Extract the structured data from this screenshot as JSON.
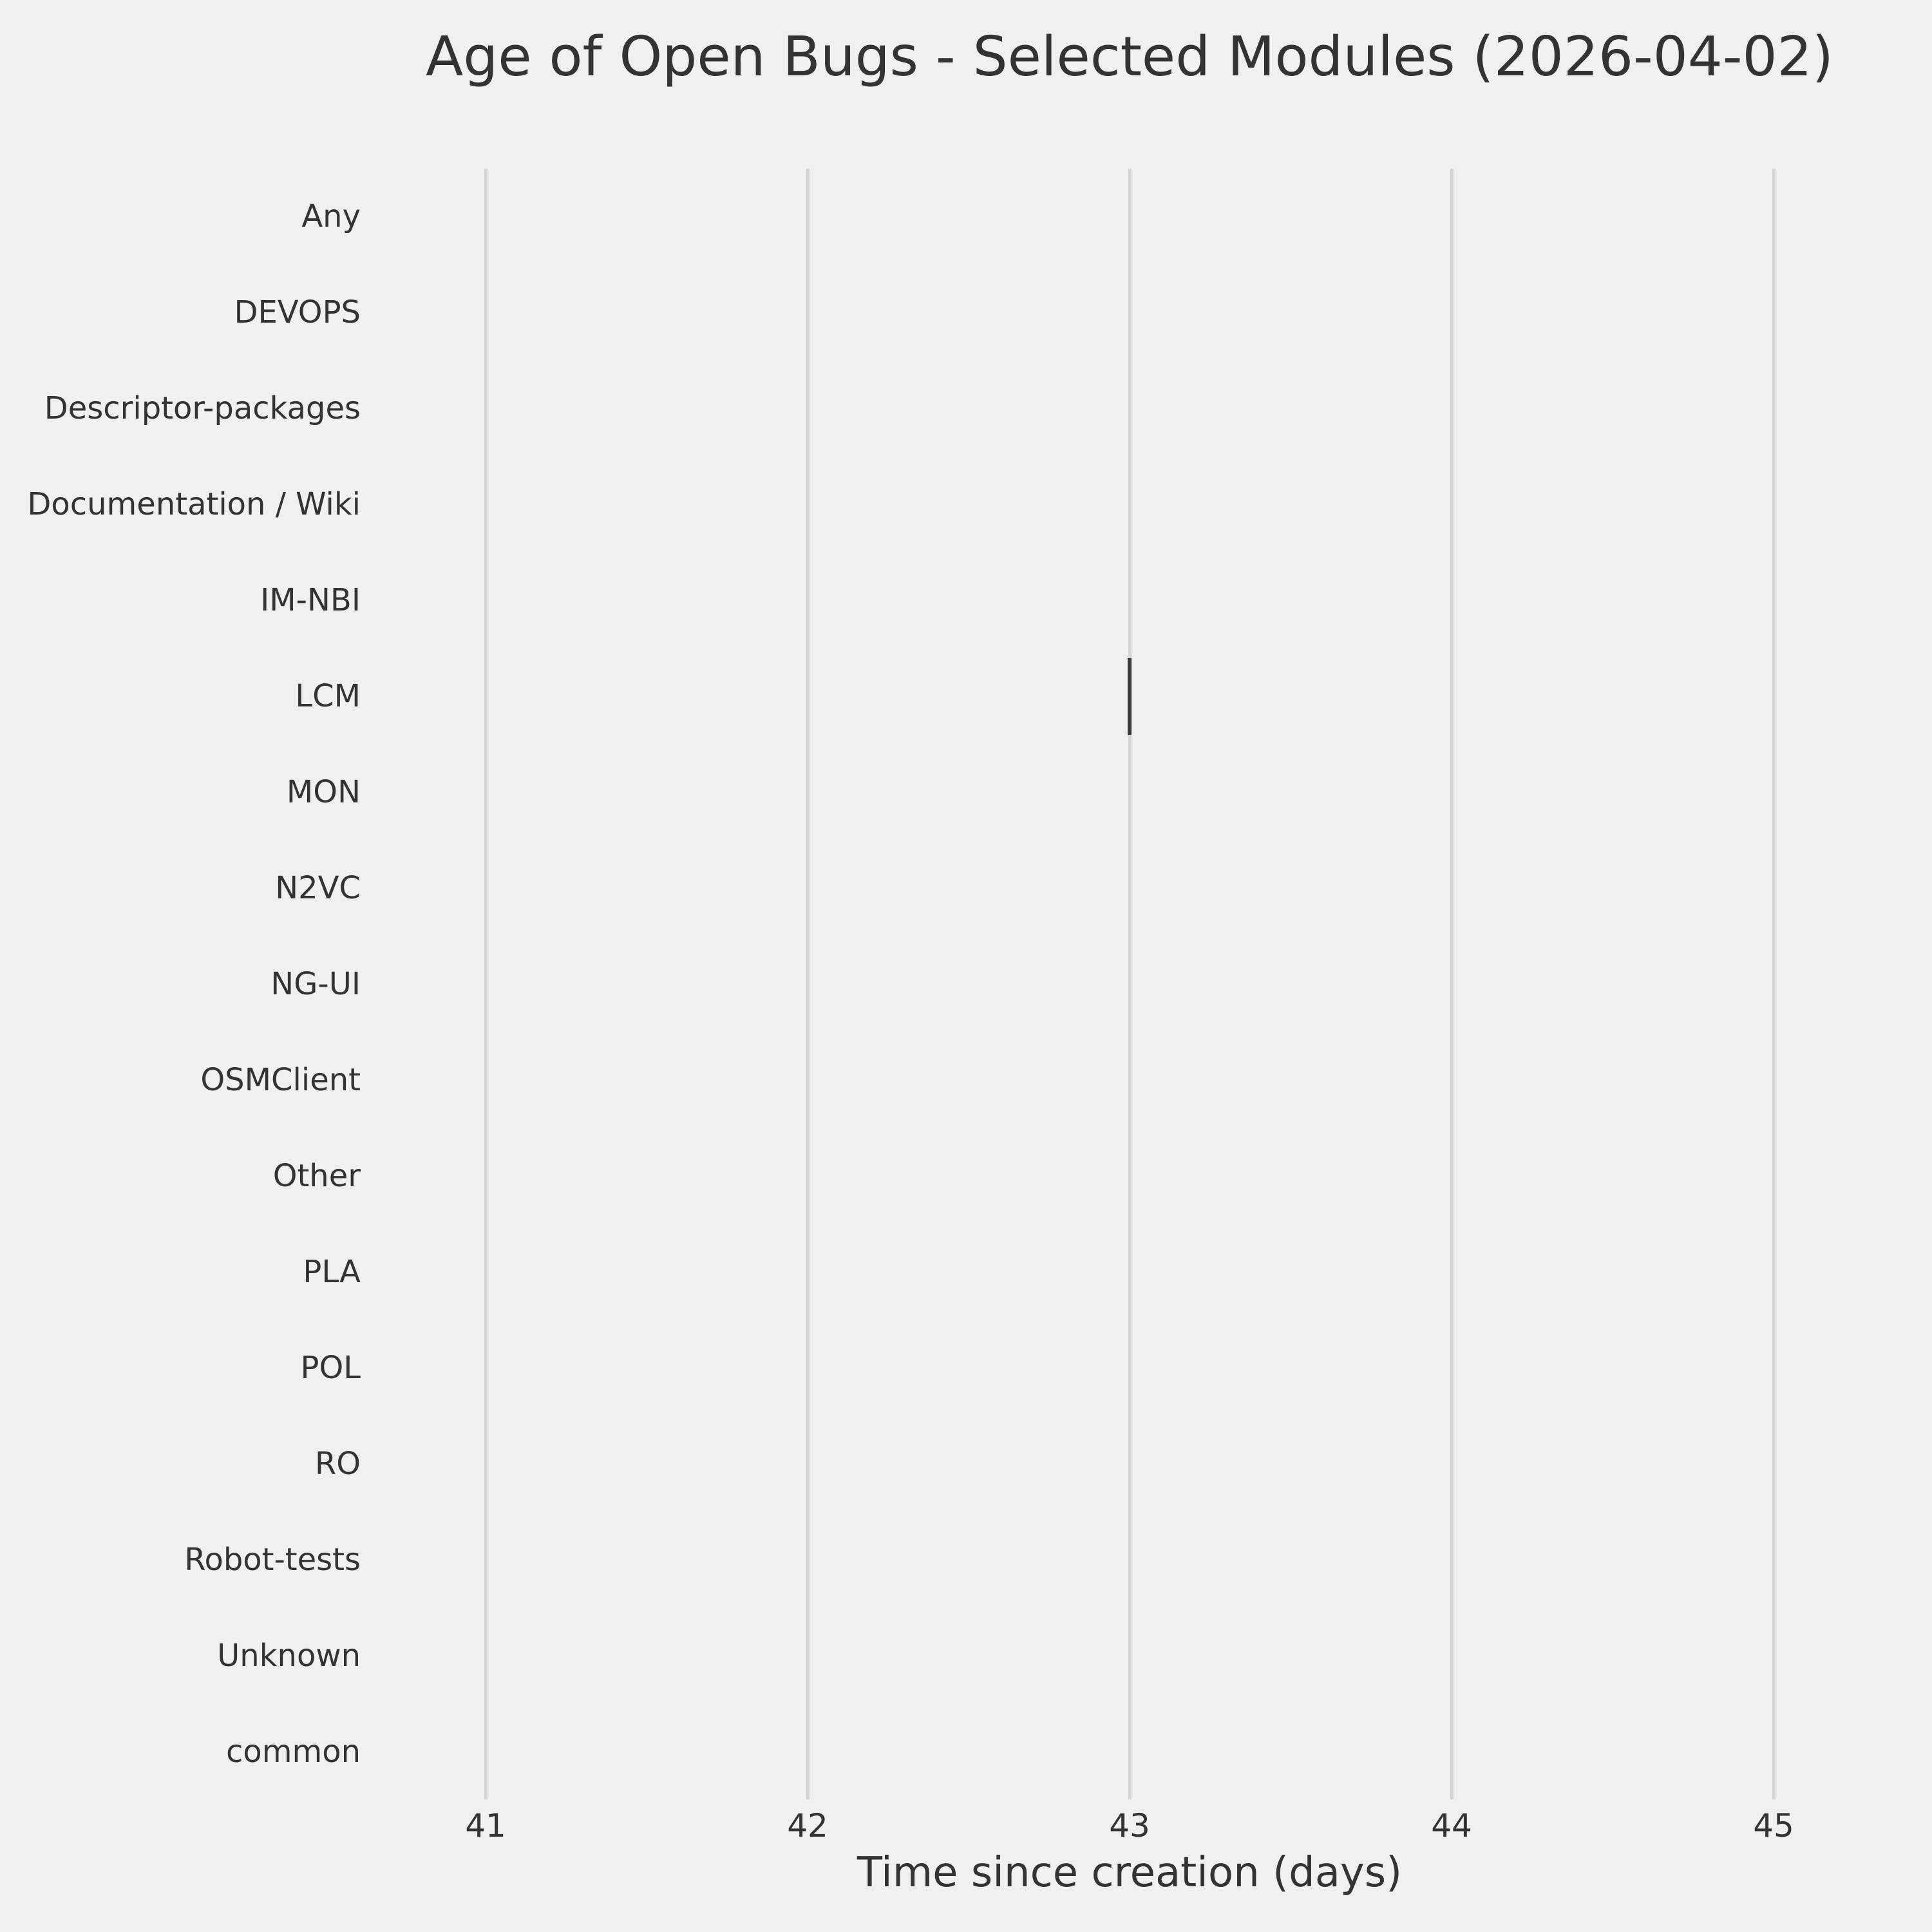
{
  "title": "Age of Open Bugs - Selected Modules (2026-04-02)",
  "colors": {
    "background": "#f0f0f0",
    "text": "#333333",
    "grid": "#d4d4d4",
    "box": "#3a3a3a"
  },
  "chart_data": {
    "type": "boxplot",
    "orientation": "horizontal",
    "title": "Age of Open Bugs - Selected Modules (2026-04-02)",
    "xlabel": "Time since creation (days)",
    "ylabel": "",
    "categories": [
      "Any",
      "DEVOPS",
      "Descriptor-packages",
      "Documentation / Wiki",
      "IM-NBI",
      "LCM",
      "MON",
      "N2VC",
      "NG-UI",
      "OSMClient",
      "Other",
      "PLA",
      "POL",
      "RO",
      "Robot-tests",
      "Unknown",
      "common"
    ],
    "x_ticks": [
      41,
      42,
      43,
      44,
      45
    ],
    "xlim": [
      40.7,
      45.3
    ],
    "grid": "vertical-only",
    "legend": "none",
    "boxes": [
      {
        "category": "LCM",
        "min": 43,
        "q1": 43,
        "median": 43,
        "q3": 43,
        "max": 43
      }
    ]
  }
}
